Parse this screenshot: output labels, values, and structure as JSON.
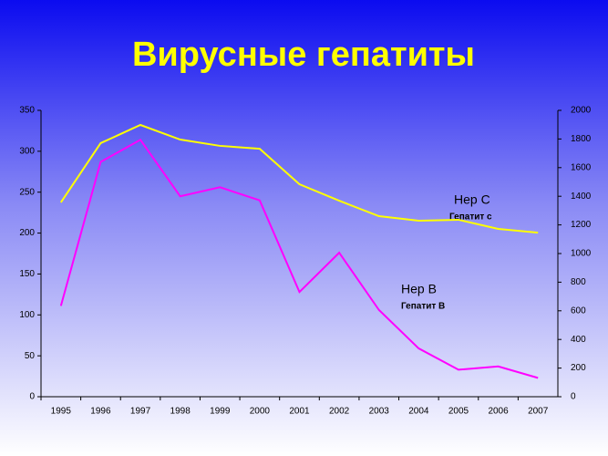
{
  "chart_data": {
    "type": "line",
    "title": "Вирусные гепатиты",
    "categories": [
      "1995",
      "1996",
      "1997",
      "1998",
      "1999",
      "2000",
      "2001",
      "2002",
      "2003",
      "2004",
      "2005",
      "2006",
      "2007"
    ],
    "series": [
      {
        "color": "#ff00ff",
        "values": [
          111,
          287,
          314,
          245,
          256,
          240,
          128,
          176,
          106,
          59,
          33,
          37,
          23
        ]
      },
      {
        "color": "#ffff00",
        "axis": "y2",
        "values": [
          1357,
          1771,
          1898,
          1796,
          1752,
          1732,
          1484,
          1369,
          1261,
          1229,
          1236,
          1172,
          1146
        ]
      }
    ],
    "ylim": [
      0,
      350
    ],
    "yticks": [
      0,
      50,
      100,
      150,
      200,
      250,
      300,
      350
    ],
    "y2lim": [
      0,
      2000
    ],
    "y2ticks": [
      0,
      200,
      400,
      600,
      800,
      1000,
      1200,
      1400,
      1600,
      1800,
      2000
    ],
    "annotations": [
      "Hep C",
      "Гепатит с",
      "Hep B",
      "Гепатит В"
    ]
  }
}
